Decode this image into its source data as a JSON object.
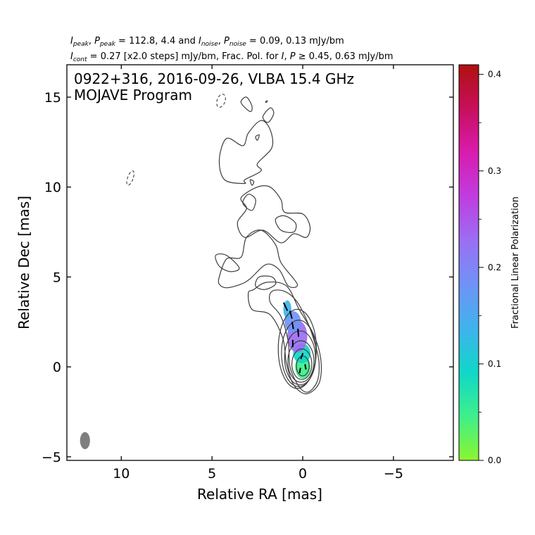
{
  "header": {
    "line1": {
      "i_peak": "I",
      "i_peak_sub": "peak",
      "sep1": ", ",
      "p_peak": "P",
      "p_peak_sub": "peak",
      "mid1": " = 112.8, 4.4 and ",
      "i_noise": "I",
      "i_noise_sub": "noise",
      "sep2": ", ",
      "p_noise": "P",
      "p_noise_sub": "noise",
      "tail": " = 0.09, 0.13 mJy/bm"
    },
    "line2": {
      "i_cont": "I",
      "i_cont_sub": "cont",
      "mid": " = 0.27 [x2.0 steps] mJy/bm, Frac. Pol. for ",
      "i": "I",
      "comma": ", ",
      "p": "P",
      "tail": " ≥ 0.45, 0.63 mJy/bm"
    }
  },
  "chart_data": {
    "type": "contour",
    "title_line1": "0922+316, 2016-09-26, VLBA 15.4 GHz",
    "title_line2": "MOJAVE Program",
    "xlabel": "Relative RA [mas]",
    "ylabel": "Relative Dec [mas]",
    "xlim": [
      13.0,
      -8.3
    ],
    "ylim": [
      -5.2,
      16.8
    ],
    "x_ticks": [
      10,
      5,
      0,
      -5
    ],
    "x_tick_labels": [
      "10",
      "5",
      "0",
      "−5"
    ],
    "y_ticks": [
      -5,
      0,
      5,
      10,
      15
    ],
    "y_tick_labels": [
      "−5",
      "0",
      "5",
      "10",
      "15"
    ],
    "colorbar": {
      "label": "Fractional Linear Polarization",
      "range": [
        0.0,
        0.41
      ],
      "ticks": [
        0.0,
        0.1,
        0.2,
        0.3,
        0.4
      ],
      "tick_labels": [
        "0.0",
        "0.1",
        "0.2",
        "0.3",
        "0.4"
      ],
      "colors": [
        "#8cf52e",
        "#3ef08a",
        "#10d7c8",
        "#3fb3ec",
        "#6f93f7",
        "#9a6ff2",
        "#c03de0",
        "#d81caf",
        "#c80f5c",
        "#b01010"
      ]
    },
    "contour_color": "#3d3d3d",
    "beam": {
      "x": 12.0,
      "y": -4.1,
      "major": 0.95,
      "minor": 0.55,
      "color": "#7f7f7f"
    },
    "negative_contours": [
      {
        "x": 4.5,
        "y": 14.8,
        "rx": 0.22,
        "ry": 0.38
      },
      {
        "x": 9.5,
        "y": 10.5,
        "rx": 0.15,
        "ry": 0.42
      }
    ],
    "core_contours": [
      {
        "x": 0.0,
        "y": 0.05,
        "rx": 0.35,
        "ry": 0.55
      },
      {
        "x": 0.05,
        "y": 0.15,
        "rx": 0.55,
        "ry": 0.85
      },
      {
        "x": 0.1,
        "y": 0.3,
        "rx": 0.72,
        "ry": 1.15
      },
      {
        "x": 0.15,
        "y": 0.5,
        "rx": 0.85,
        "ry": 1.5
      },
      {
        "x": 0.22,
        "y": 0.75,
        "rx": 0.95,
        "ry": 1.85
      },
      {
        "x": 0.3,
        "y": 1.0,
        "rx": 1.05,
        "ry": 2.2
      }
    ],
    "extended_contours": [
      [
        [
          -0.8,
          -0.8
        ],
        [
          -0.9,
          0.2
        ],
        [
          -0.7,
          1.2
        ],
        [
          -0.3,
          2.4
        ],
        [
          0.3,
          3.6
        ],
        [
          1.0,
          4.2
        ],
        [
          1.7,
          4.2
        ],
        [
          1.8,
          3.6
        ],
        [
          1.2,
          2.8
        ],
        [
          0.8,
          1.4
        ],
        [
          0.7,
          0.0
        ],
        [
          0.2,
          -1.1
        ],
        [
          -0.3,
          -1.4
        ]
      ],
      [
        [
          -0.9,
          -0.9
        ],
        [
          -1.0,
          0.4
        ],
        [
          -0.6,
          1.8
        ],
        [
          0.2,
          3.2
        ],
        [
          0.9,
          4.5
        ],
        [
          2.0,
          4.7
        ],
        [
          2.7,
          4.3
        ],
        [
          3.0,
          4.1
        ],
        [
          2.8,
          3.2
        ],
        [
          1.8,
          2.9
        ],
        [
          1.1,
          1.6
        ],
        [
          0.9,
          0.2
        ],
        [
          0.5,
          -1.0
        ],
        [
          -0.2,
          -1.5
        ]
      ],
      [
        [
          2.1,
          4.3
        ],
        [
          2.6,
          4.5
        ],
        [
          2.4,
          5.0
        ],
        [
          1.7,
          5.0
        ],
        [
          1.5,
          4.6
        ]
      ],
      [
        [
          0.3,
          4.6
        ],
        [
          1.2,
          5.8
        ],
        [
          1.5,
          6.8
        ],
        [
          2.3,
          7.6
        ],
        [
          3.1,
          7.2
        ],
        [
          3.4,
          6.1
        ],
        [
          4.2,
          6.0
        ],
        [
          4.6,
          5.0
        ],
        [
          4.6,
          4.6
        ],
        [
          4.2,
          4.4
        ],
        [
          3.4,
          4.6
        ],
        [
          2.9,
          4.9
        ],
        [
          2.0,
          5.7
        ],
        [
          1.3,
          5.4
        ],
        [
          0.8,
          4.5
        ]
      ],
      [
        [
          3.5,
          5.5
        ],
        [
          4.2,
          6.2
        ],
        [
          4.8,
          6.2
        ],
        [
          4.6,
          5.6
        ],
        [
          4.0,
          5.3
        ]
      ],
      [
        [
          3.2,
          7.2
        ],
        [
          3.6,
          8.0
        ],
        [
          3.1,
          8.8
        ],
        [
          3.4,
          9.4
        ],
        [
          2.5,
          10.0
        ],
        [
          1.8,
          10.0
        ],
        [
          1.2,
          9.3
        ],
        [
          1.0,
          8.6
        ],
        [
          0.0,
          8.5
        ],
        [
          -0.4,
          7.8
        ],
        [
          -0.2,
          7.2
        ],
        [
          0.5,
          7.4
        ],
        [
          1.2,
          6.9
        ],
        [
          2.2,
          7.6
        ]
      ],
      [
        [
          0.5,
          7.5
        ],
        [
          1.2,
          7.6
        ],
        [
          1.5,
          8.2
        ],
        [
          1.0,
          8.4
        ],
        [
          0.4,
          8.0
        ]
      ],
      [
        [
          2.8,
          8.7
        ],
        [
          3.3,
          9.1
        ],
        [
          3.0,
          9.6
        ],
        [
          2.6,
          9.3
        ]
      ],
      [
        [
          2.8,
          10.1
        ],
        [
          2.9,
          10.4
        ],
        [
          2.7,
          10.3
        ]
      ],
      [
        [
          3.2,
          10.2
        ],
        [
          4.3,
          10.4
        ],
        [
          4.6,
          11.5
        ],
        [
          4.2,
          12.7
        ],
        [
          3.3,
          12.3
        ],
        [
          3.0,
          13.0
        ],
        [
          2.3,
          13.7
        ],
        [
          1.8,
          13.2
        ],
        [
          1.7,
          12.2
        ],
        [
          2.5,
          11.3
        ],
        [
          2.3,
          10.9
        ],
        [
          3.2,
          10.4
        ]
      ],
      [
        [
          1.9,
          13.6
        ],
        [
          1.6,
          14.1
        ],
        [
          1.8,
          14.4
        ],
        [
          2.2,
          13.9
        ]
      ],
      [
        [
          2.9,
          14.2
        ],
        [
          3.4,
          14.7
        ],
        [
          3.1,
          15.0
        ],
        [
          2.8,
          14.5
        ]
      ],
      [
        [
          2.5,
          12.6
        ],
        [
          2.4,
          12.9
        ],
        [
          2.6,
          12.8
        ]
      ],
      [
        [
          2.0,
          14.7
        ],
        [
          1.95,
          14.8
        ],
        [
          2.05,
          14.75
        ]
      ]
    ],
    "pol_regions": [
      {
        "x": 0.0,
        "y": 0.0,
        "rx": 0.42,
        "ry": 0.65,
        "frac": 0.04
      },
      {
        "x": 0.05,
        "y": 0.75,
        "rx": 0.48,
        "ry": 0.55,
        "frac": 0.07
      },
      {
        "x": 0.3,
        "y": 1.7,
        "rx": 0.55,
        "ry": 0.9,
        "frac": 0.22
      },
      {
        "x": 0.55,
        "y": 2.5,
        "rx": 0.45,
        "ry": 0.6,
        "frac": 0.16
      },
      {
        "x": 0.85,
        "y": 3.2,
        "rx": 0.22,
        "ry": 0.5,
        "frac": 0.14
      }
    ],
    "evpa_ticks": [
      {
        "x": 0.95,
        "y": 3.35,
        "angle_deg": 25,
        "len": 0.5
      },
      {
        "x": 0.65,
        "y": 2.9,
        "angle_deg": 15,
        "len": 0.45
      },
      {
        "x": 0.55,
        "y": 2.3,
        "angle_deg": 10,
        "len": 0.4
      },
      {
        "x": 0.25,
        "y": 1.9,
        "angle_deg": 5,
        "len": 0.45
      },
      {
        "x": 0.55,
        "y": 1.3,
        "angle_deg": 0,
        "len": 0.4
      },
      {
        "x": 0.05,
        "y": 0.6,
        "angle_deg": -20,
        "len": 0.35
      },
      {
        "x": -0.15,
        "y": 0.0,
        "angle_deg": 10,
        "len": 0.3
      },
      {
        "x": 0.15,
        "y": -0.2,
        "angle_deg": -10,
        "len": 0.3
      }
    ]
  }
}
